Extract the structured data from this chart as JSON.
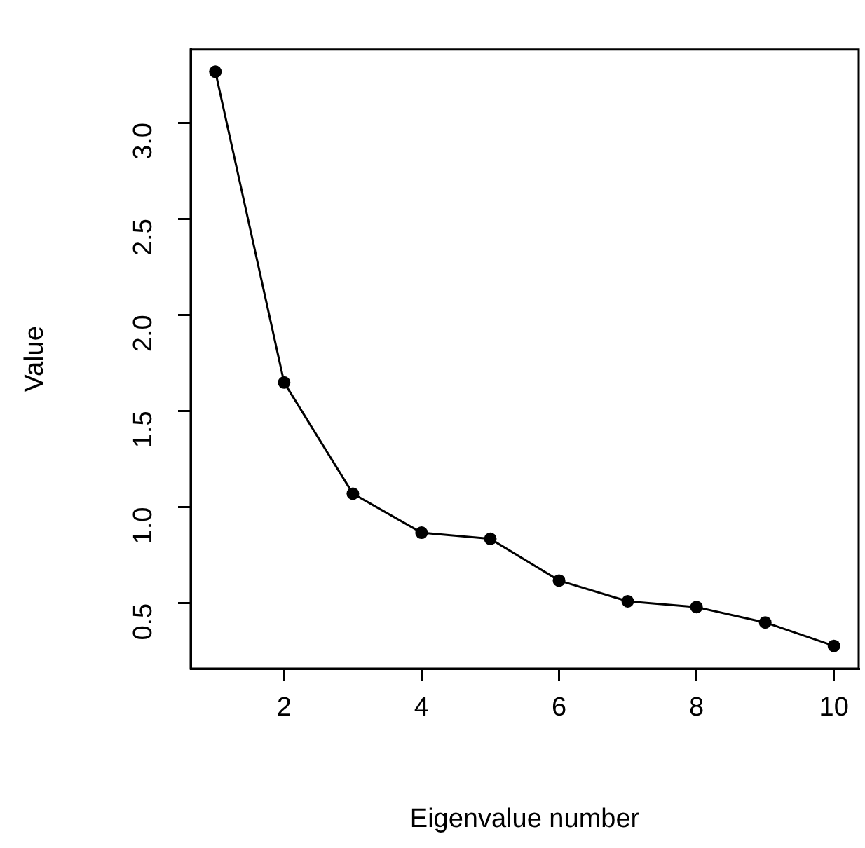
{
  "chart_data": {
    "type": "line",
    "xlabel": "Eigenvalue number",
    "ylabel": "Value",
    "x": [
      1,
      2,
      3,
      4,
      5,
      6,
      7,
      8,
      9,
      10
    ],
    "series": [
      {
        "color": "#000000",
        "values": [
          3.265,
          1.648,
          1.07,
          0.867,
          0.835,
          0.618,
          0.51,
          0.48,
          0.4,
          0.278
        ]
      }
    ],
    "xlim": [
      0.64,
      10.36
    ],
    "xticks": [
      2,
      4,
      6,
      8,
      10
    ],
    "ylim": [
      0.16,
      3.38
    ],
    "yticks": [
      0.5,
      {
        "value": 1,
        "label": "1.0"
      },
      1.5,
      {
        "value": 2,
        "label": "2.0"
      },
      2.5,
      {
        "value": 3,
        "label": "3.0"
      }
    ],
    "marker": "circle",
    "line_style": "solid",
    "legend": false,
    "grid": false
  }
}
